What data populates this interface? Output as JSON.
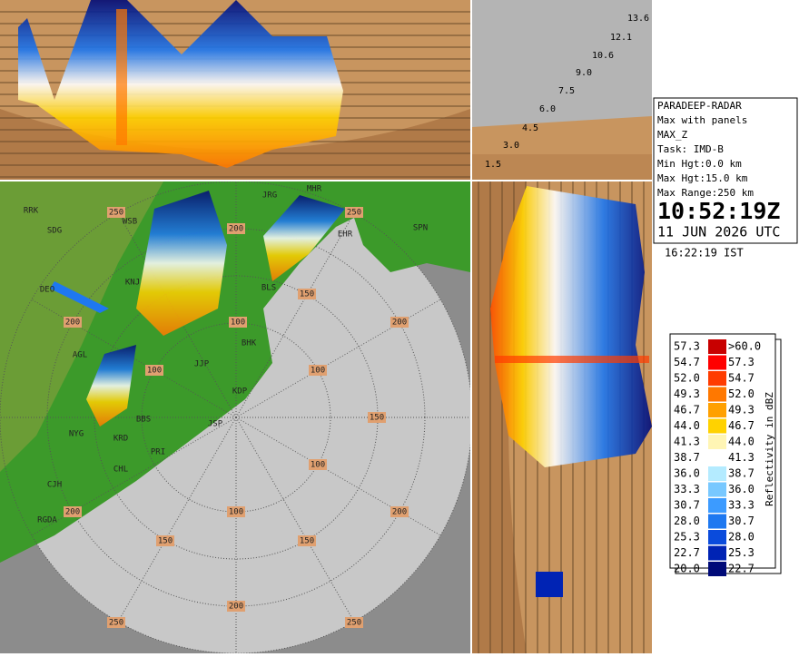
{
  "station": "PARADEEP-RADAR",
  "info": [
    "Max with panels",
    "MAX_Z",
    "Task: IMD-B",
    "Min Hgt:0.0 km",
    "Max Hgt:15.0 km",
    "Max Range:250 km"
  ],
  "time_utc": "10:52:19Z",
  "date_utc": "11 JUN 2026 UTC",
  "time_ist": "16:22:19 IST",
  "height_labels": [
    "13.6",
    "12.1",
    "10.6",
    "9.0",
    "7.5",
    "6.0",
    "4.5",
    "3.0",
    "1.5"
  ],
  "legend": {
    "title": "Reflectivity in dBZ",
    "rows": [
      {
        "low": "57.3",
        "high": ">60.0",
        "color": "#c80000"
      },
      {
        "low": "54.7",
        "high": "57.3",
        "color": "#ff0000"
      },
      {
        "low": "52.0",
        "high": "54.7",
        "color": "#ff3c00"
      },
      {
        "low": "49.3",
        "high": "52.0",
        "color": "#ff7800"
      },
      {
        "low": "46.7",
        "high": "49.3",
        "color": "#ffa000"
      },
      {
        "low": "44.0",
        "high": "46.7",
        "color": "#ffd200"
      },
      {
        "low": "41.3",
        "high": "44.0",
        "color": "#fff5b4"
      },
      {
        "low": "38.7",
        "high": "41.3",
        "color": "#ffffff"
      },
      {
        "low": "36.0",
        "high": "38.7",
        "color": "#b4ebff"
      },
      {
        "low": "33.3",
        "high": "36.0",
        "color": "#78c8ff"
      },
      {
        "low": "30.7",
        "high": "33.3",
        "color": "#3c9bff"
      },
      {
        "low": "28.0",
        "high": "30.7",
        "color": "#1e78f0"
      },
      {
        "low": "25.3",
        "high": "28.0",
        "color": "#0a4bdc"
      },
      {
        "low": "22.7",
        "high": "25.3",
        "color": "#0023b4"
      },
      {
        "low": "20.0",
        "high": "22.7",
        "color": "#000a78"
      }
    ]
  },
  "range_labels": [
    "250",
    "200",
    "250",
    "150",
    "200",
    "200",
    "100",
    "100",
    "100",
    "150",
    "100",
    "200",
    "100",
    "200",
    "150",
    "150",
    "200",
    "250",
    "250"
  ],
  "cities": [
    "RRK",
    "SDG",
    "WSB",
    "JRG",
    "MHR",
    "EHR",
    "SPN",
    "KNJ",
    "DEO",
    "BLS",
    "BHK",
    "AGL",
    "JJP",
    "KDP",
    "JSP",
    "BBS",
    "KRD",
    "NYG",
    "PRI",
    "CHL",
    "CJH",
    "RGDA"
  ]
}
